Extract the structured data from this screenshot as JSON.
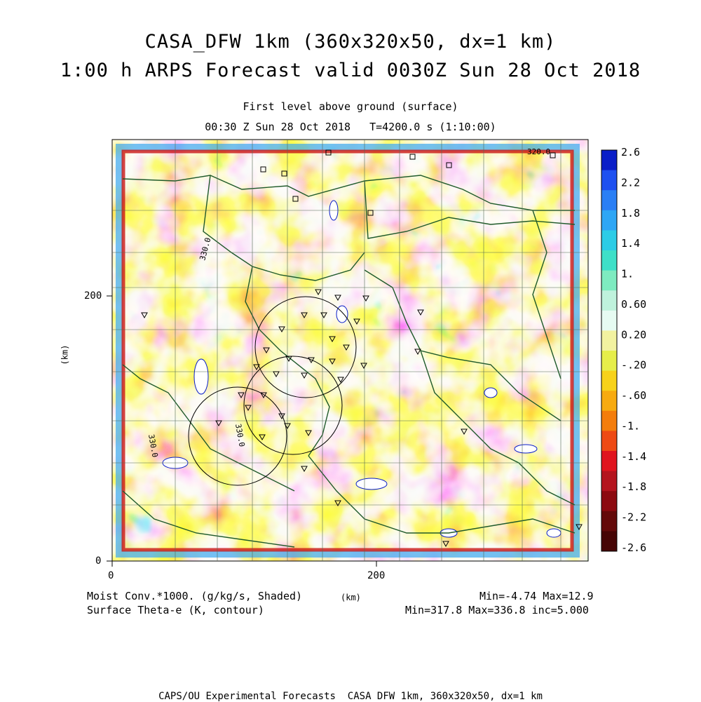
{
  "header": {
    "title_line1": "CASA_DFW 1km (360x320x50, dx=1 km)",
    "title_line2": "1:00 h ARPS Forecast valid 0030Z Sun 28 Oct 2018",
    "level": "First level above ground (surface)",
    "valid_time": "00:30 Z Sun 28 Oct 2018   T=4200.0 s (1:10:00)"
  },
  "axes": {
    "x_unit": "(km)",
    "y_unit": "(km)",
    "x_ticks": [
      "0",
      "200"
    ],
    "y_ticks": [
      "0",
      "200"
    ]
  },
  "colorbar": {
    "labels": [
      "2.6",
      "2.2",
      "1.8",
      "1.4",
      "1.",
      "0.60",
      "0.20",
      "-.20",
      "-.60",
      "-1.",
      "-1.4",
      "-1.8",
      "-2.2",
      "-2.6"
    ],
    "colors": [
      "#0a1ec8",
      "#1e50f0",
      "#2a7ff5",
      "#2ea6f5",
      "#2ccce6",
      "#3ee0c8",
      "#7eebc0",
      "#bff2dc",
      "#e6fbf2",
      "#f2f2a0",
      "#e6ee4a",
      "#f7d21a",
      "#f7aa10",
      "#f47d0c",
      "#ee4a14",
      "#e0141e",
      "#b4141e",
      "#8c0a10",
      "#640a0a",
      "#460505"
    ]
  },
  "map": {
    "contour_labels": [
      "330.0",
      "330.0",
      "330.0",
      "320.0"
    ],
    "cities": [
      "square-marker",
      "triangle-marker"
    ]
  },
  "footer": {
    "field1": "Moist Conv.*1000. (g/kg/s, Shaded)",
    "field1_minmax": "Min=-4.74 Max=12.9",
    "field2": "Surface Theta-e (K, contour)",
    "field2_minmax": "Min=317.8 Max=336.8 inc=5.000",
    "x_unit": "(km)",
    "credit": "CAPS/OU Experimental Forecasts  CASA DFW 1km, 360x320x50, dx=1 km"
  }
}
